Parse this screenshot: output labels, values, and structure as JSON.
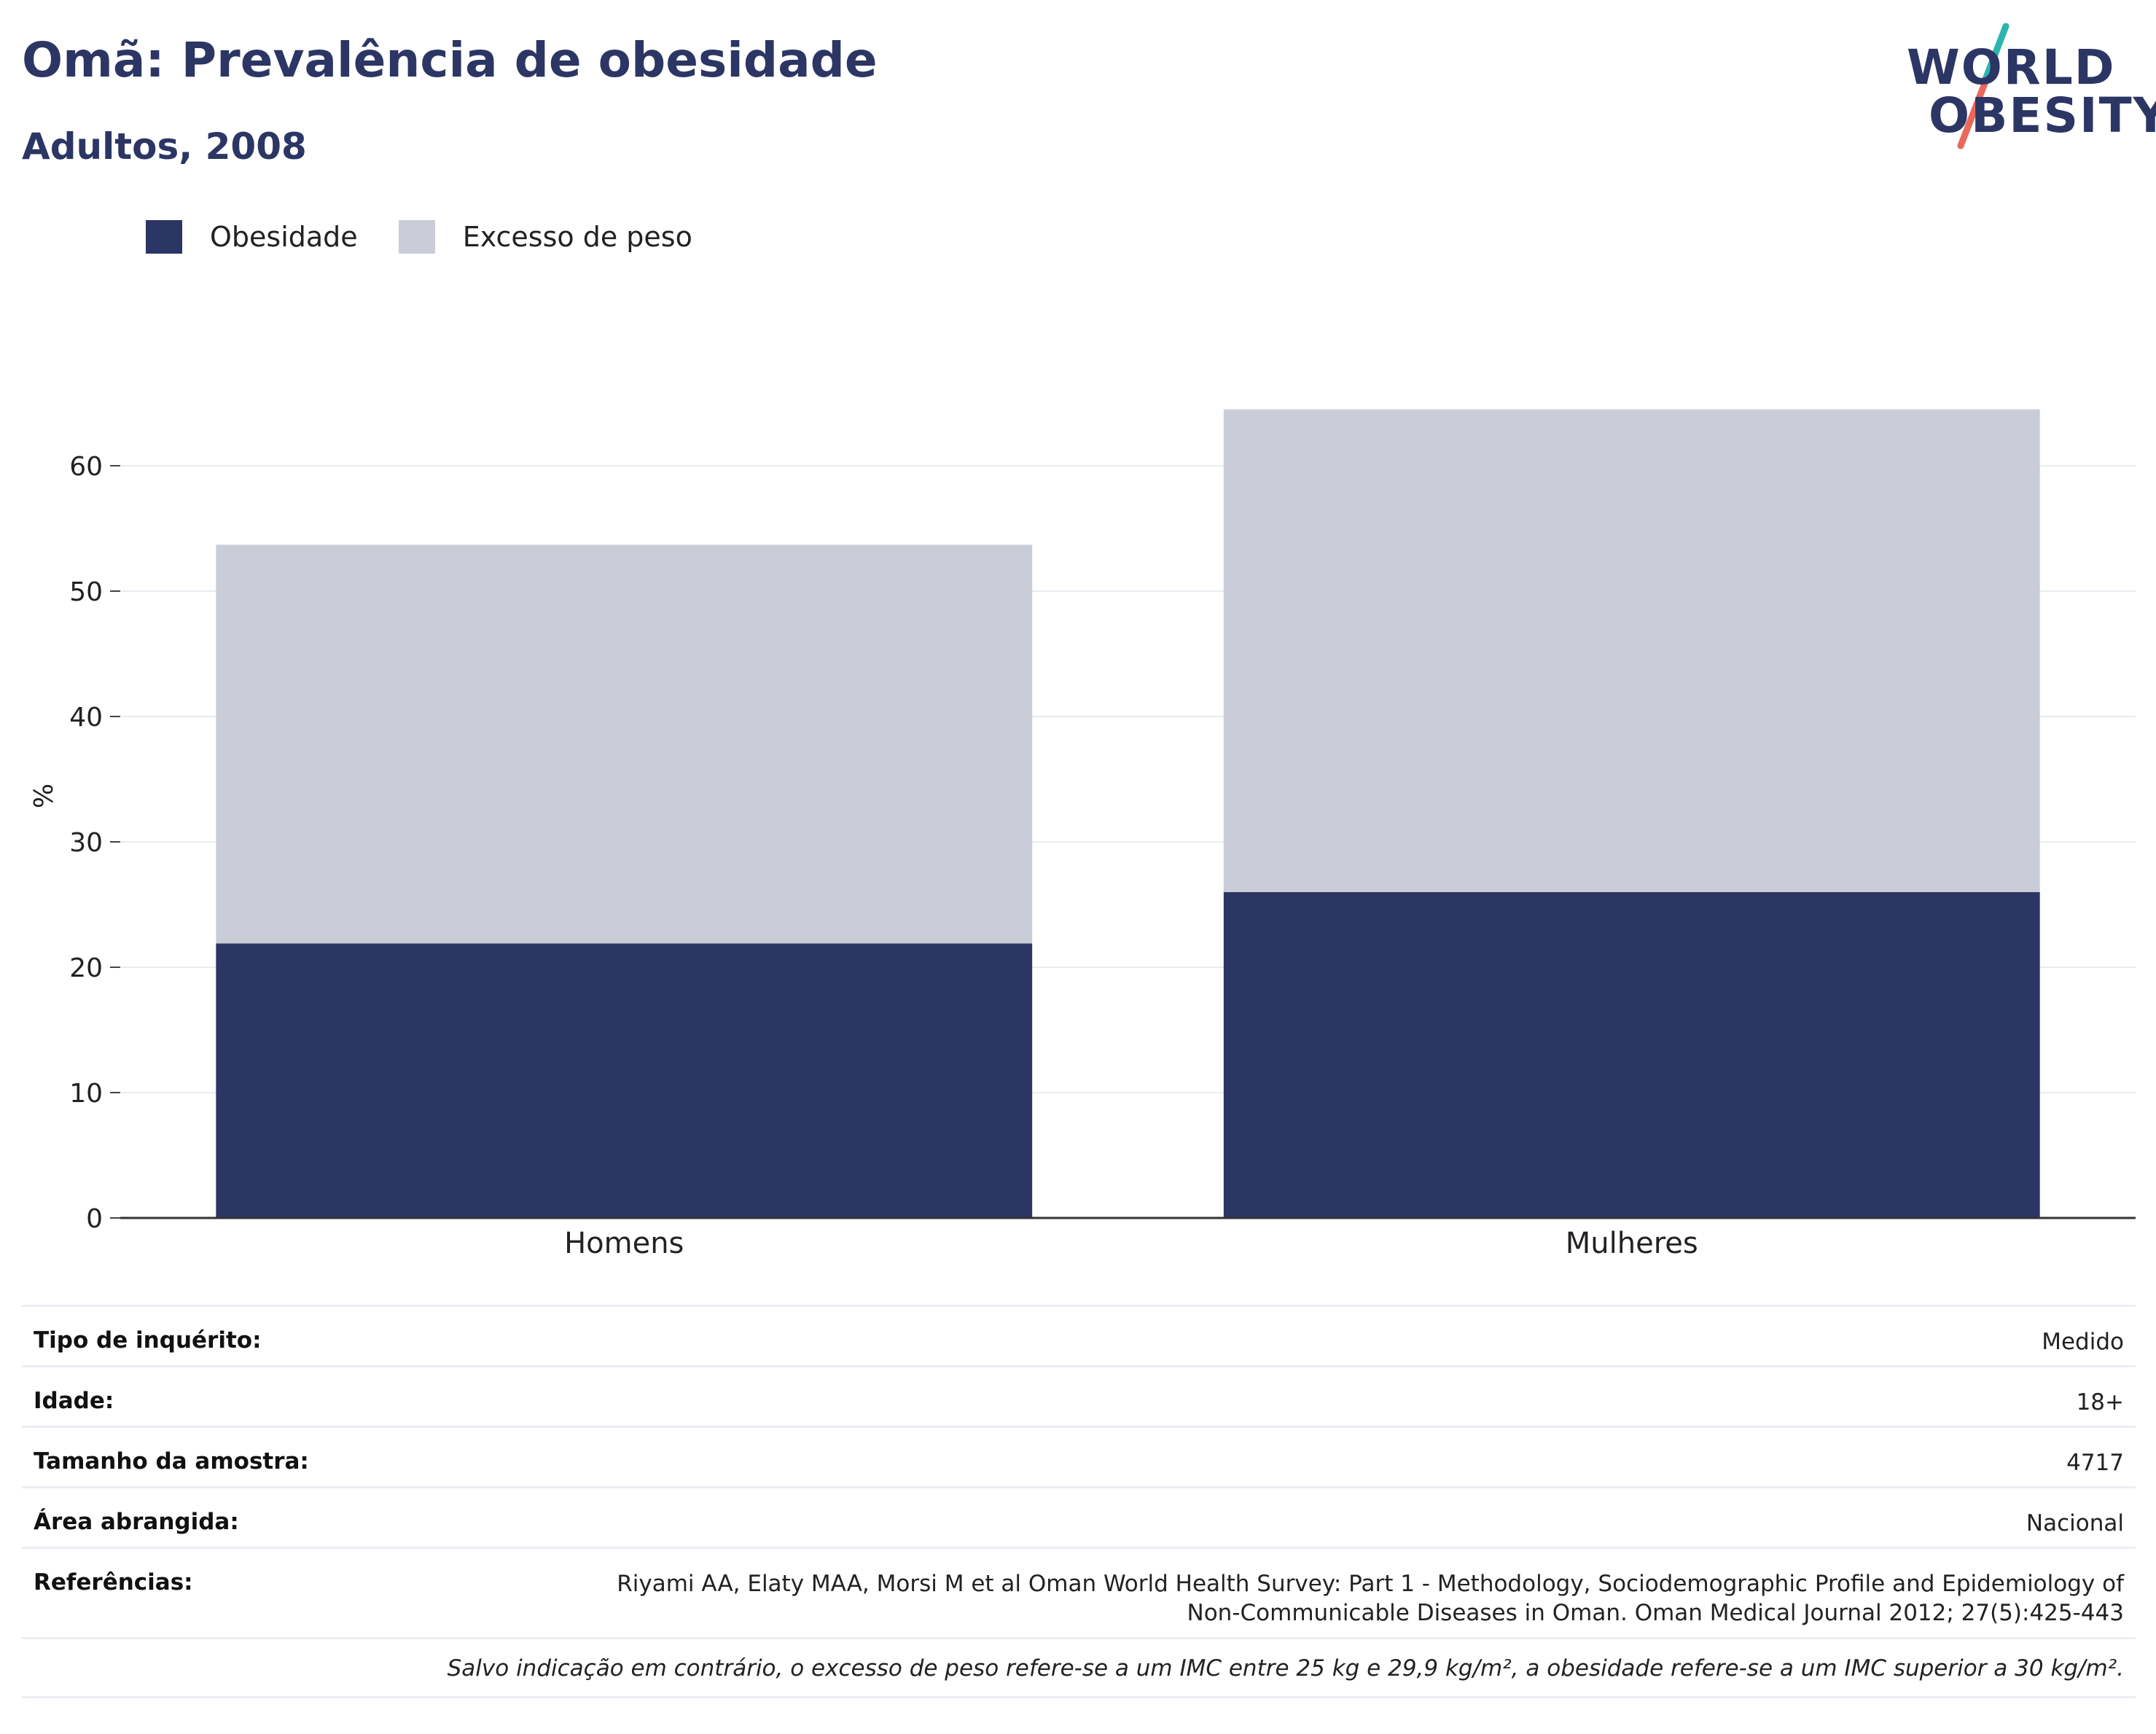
{
  "header": {
    "title": "Omã: Prevalência de obesidade",
    "subtitle": "Adultos, 2008"
  },
  "logo": {
    "line1": "WORLD",
    "line2": "OBESITY",
    "slash_top_color": "#2bb5b0",
    "slash_bottom_color": "#e8685a"
  },
  "legend": [
    {
      "label": "Obesidade",
      "color": "#2b3664"
    },
    {
      "label": "Excesso de peso",
      "color": "#cacdd8"
    }
  ],
  "chart_data": {
    "type": "bar",
    "stacked": true,
    "categories": [
      "Homens",
      "Mulheres"
    ],
    "series": [
      {
        "name": "Obesidade",
        "color": "#2b3664",
        "values": [
          21.9,
          26.0
        ]
      },
      {
        "name": "Excesso de peso",
        "color": "#cacdd8",
        "values": [
          31.8,
          38.5
        ]
      }
    ],
    "ylabel": "%",
    "ylim": [
      0,
      70
    ],
    "yticks": [
      0,
      10,
      20,
      30,
      40,
      50,
      60
    ],
    "grid": true,
    "legend_position": "top-left"
  },
  "info": {
    "rows": [
      {
        "label": "Tipo de inquérito:",
        "value": "Medido"
      },
      {
        "label": "Idade:",
        "value": "18+"
      },
      {
        "label": "Tamanho da amostra:",
        "value": "4717"
      },
      {
        "label": "Área abrangida:",
        "value": "Nacional"
      },
      {
        "label": "Referências:",
        "value_line1": "Riyami AA, Elaty MAA, Morsi M et al Oman World Health Survey: Part 1 - Methodology, Sociodemographic Profile and Epidemiology of",
        "value_line2": "Non-Communicable Diseases in Oman. Oman Medical Journal 2012; 27(5):425-443"
      }
    ],
    "note": "Salvo indicação em contrário, o excesso de peso refere-se a um IMC entre 25 kg e 29,9 kg/m², a obesidade refere-se a um IMC superior a 30 kg/m²."
  }
}
